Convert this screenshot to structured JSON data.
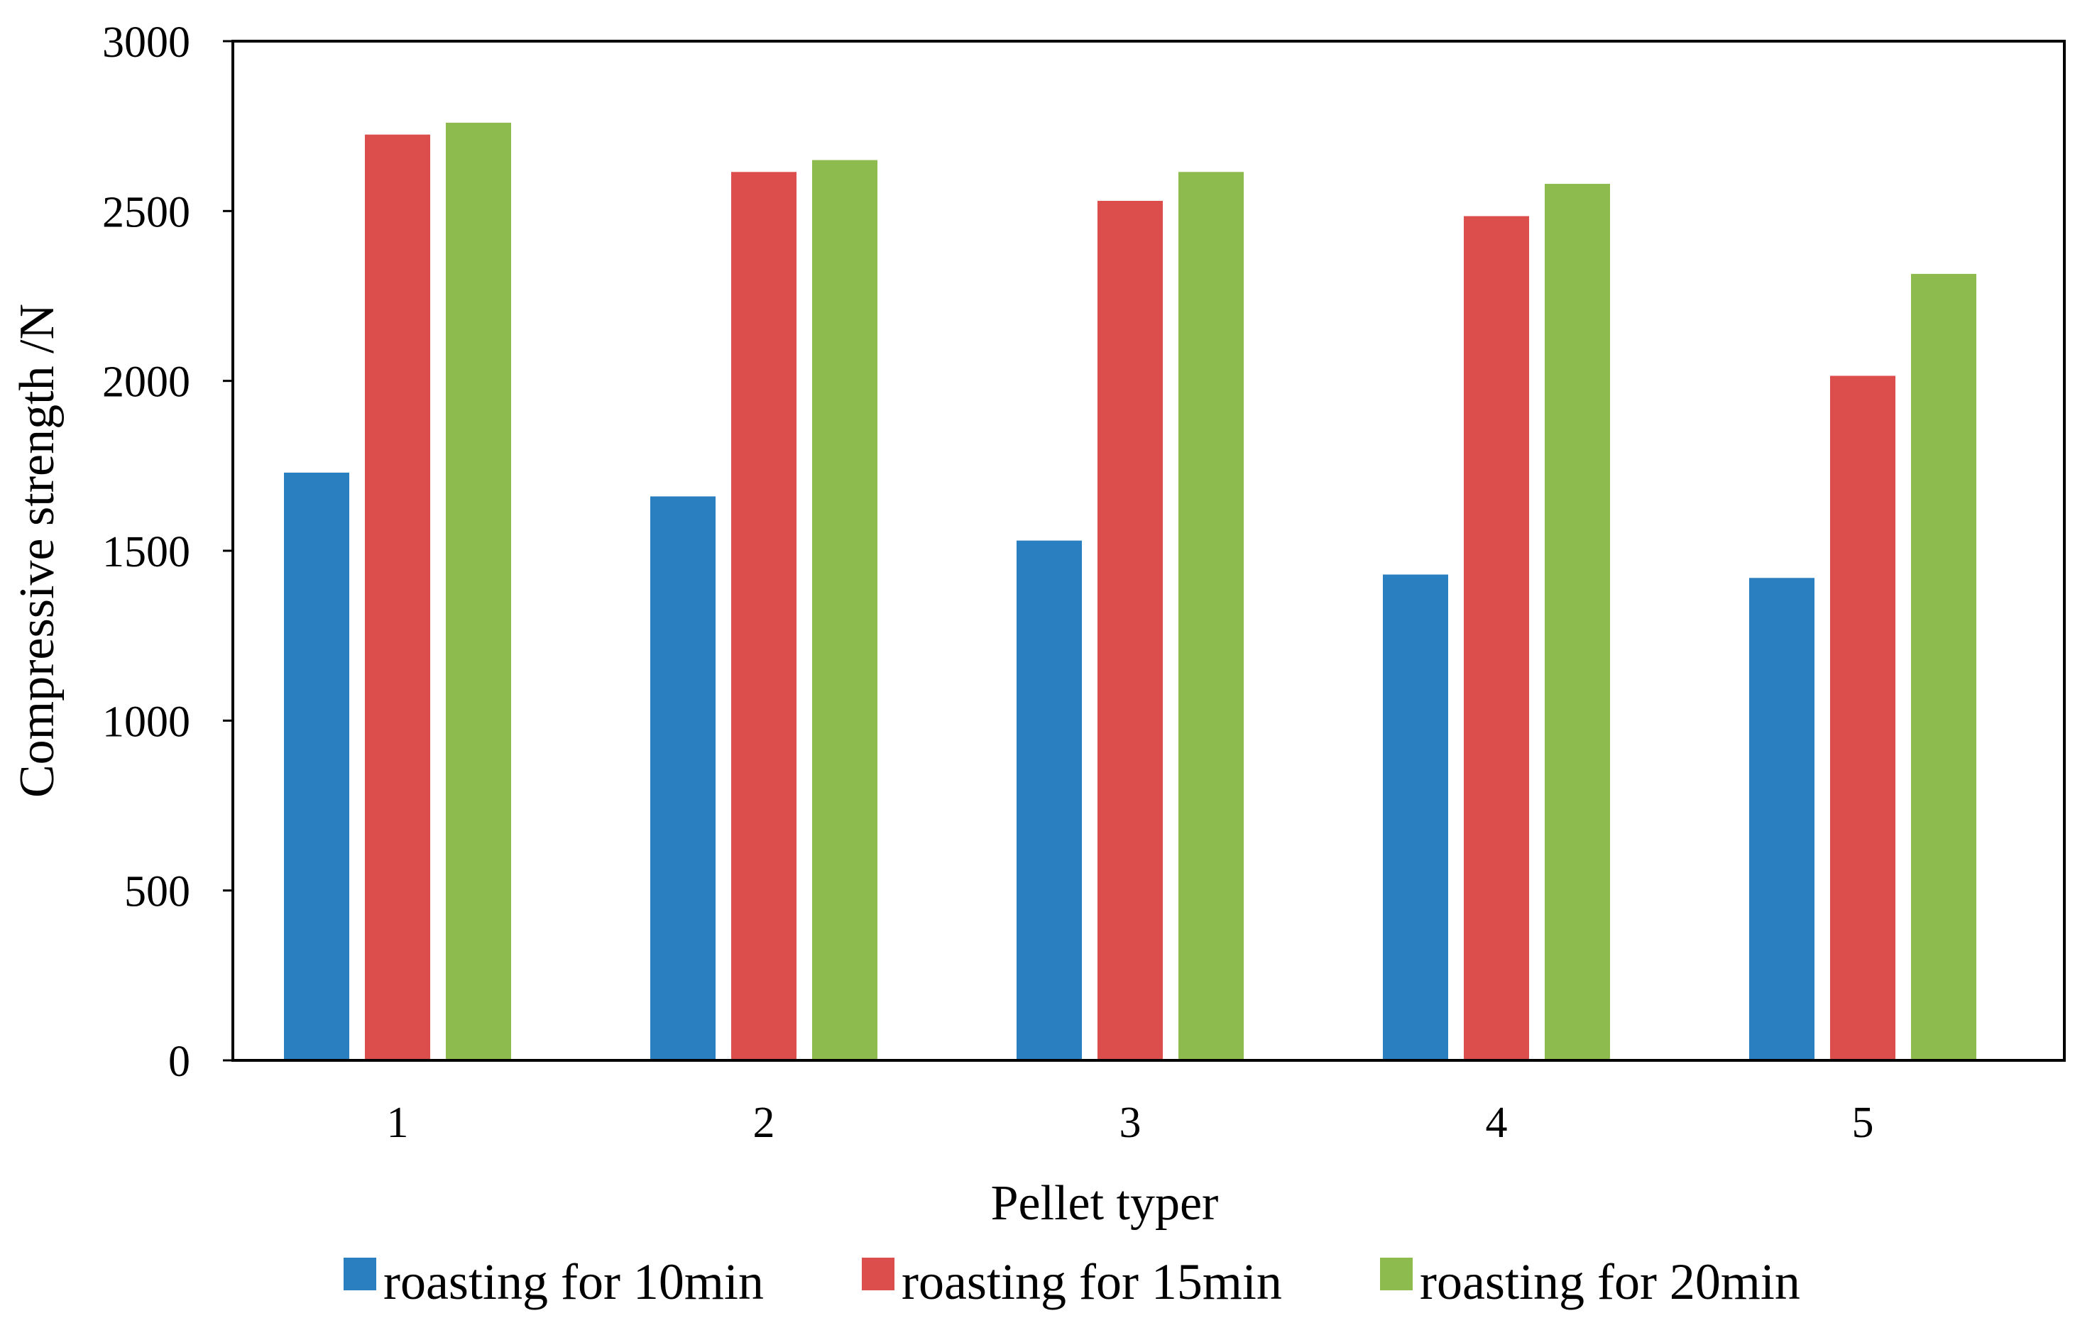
{
  "chart_data": {
    "type": "bar",
    "title": "",
    "xlabel": "Pellet typer",
    "ylabel": "Compressive strength /N",
    "ylim": [
      0,
      3000
    ],
    "yticks": [
      0,
      500,
      1000,
      1500,
      2000,
      2500,
      3000
    ],
    "categories": [
      "1",
      "2",
      "3",
      "4",
      "5"
    ],
    "series": [
      {
        "name": "roasting for 10min",
        "color": "#2a7fc1",
        "values": [
          1730,
          1660,
          1530,
          1430,
          1420
        ]
      },
      {
        "name": "roasting for 15min",
        "color": "#dc4e4c",
        "values": [
          2725,
          2615,
          2530,
          2485,
          2015
        ]
      },
      {
        "name": "roasting for 20min",
        "color": "#8dbb4e",
        "values": [
          2760,
          2650,
          2615,
          2580,
          2315
        ]
      }
    ],
    "grid": false,
    "legend_position": "bottom"
  }
}
